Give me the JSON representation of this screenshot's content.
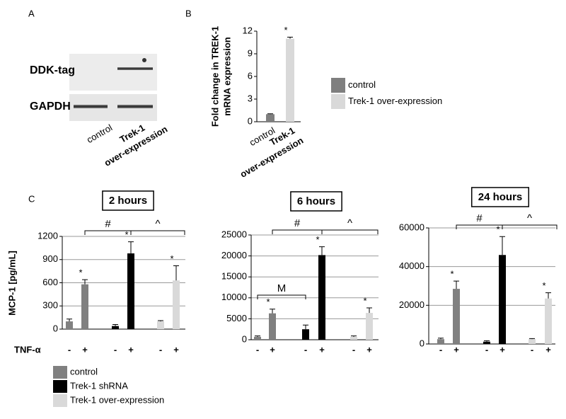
{
  "panel_labels": [
    "A",
    "B",
    "C"
  ],
  "blot": {
    "rows": [
      "DDK-tag",
      "GAPDH"
    ],
    "lanes": [
      "control",
      [
        "Trek-1",
        "over-expression"
      ]
    ]
  },
  "chart_data": [
    {
      "type": "bar",
      "y_label": [
        "Fold change in TREK-1",
        "mRNA expression"
      ],
      "categories": [
        "control",
        [
          "Trek-1",
          "over-expression"
        ]
      ],
      "values": [
        1,
        11
      ],
      "errors": [
        0.05,
        0.2
      ],
      "colors": [
        "#7f7f7f",
        "#d9d9d9"
      ],
      "ylim": [
        0,
        12
      ],
      "yticks": [
        0,
        3,
        6,
        9,
        12
      ],
      "grid": false,
      "annotations": [
        {
          "text": "*",
          "at": 1
        }
      ],
      "legend": [
        {
          "name": "control",
          "color": "#7f7f7f"
        },
        {
          "name": "Trek-1 over-expression",
          "color": "#d9d9d9"
        }
      ]
    },
    {
      "type": "bar",
      "title": "2 hours",
      "y_label": "MCP-1 [pg/mL]",
      "x_label": "TNF-α",
      "categories": [
        "-",
        "+",
        "-",
        "+",
        "-",
        "+"
      ],
      "values": [
        100,
        580,
        40,
        980,
        100,
        630
      ],
      "errors": [
        30,
        60,
        20,
        150,
        10,
        190
      ],
      "colors": [
        "#808080",
        "#808080",
        "#000000",
        "#000000",
        "#d9d9d9",
        "#d9d9d9"
      ],
      "ylim": [
        0,
        1200
      ],
      "yticks": [
        0,
        300,
        600,
        900,
        1200
      ],
      "grid": true,
      "annotations": [
        {
          "text": "*",
          "at": 1
        },
        {
          "text": "*",
          "at": 3
        },
        {
          "text": "*",
          "at": 5
        }
      ],
      "brackets": [
        {
          "text": "#",
          "from": 1,
          "to": 3
        },
        {
          "text": "^",
          "from": 3,
          "to": 5
        }
      ],
      "legend": [
        {
          "name": "control",
          "color": "#808080"
        },
        {
          "name": "Trek-1 shRNA",
          "color": "#000000"
        },
        {
          "name": "Trek-1 over-expression",
          "color": "#d9d9d9"
        }
      ]
    },
    {
      "type": "bar",
      "title": "6 hours",
      "categories": [
        "-",
        "+",
        "-",
        "+",
        "-",
        "+"
      ],
      "values": [
        700,
        6300,
        2500,
        20200,
        700,
        6400
      ],
      "errors": [
        200,
        1000,
        1000,
        2000,
        200,
        1200
      ],
      "colors": [
        "#808080",
        "#808080",
        "#000000",
        "#000000",
        "#d9d9d9",
        "#d9d9d9"
      ],
      "ylim": [
        0,
        25000
      ],
      "yticks": [
        0,
        5000,
        10000,
        15000,
        20000,
        25000
      ],
      "grid": true,
      "annotations": [
        {
          "text": "*",
          "at": 1
        },
        {
          "text": "*",
          "at": 3
        },
        {
          "text": "*",
          "at": 5
        }
      ],
      "brackets": [
        {
          "text": "M",
          "from": 0,
          "to": 2
        },
        {
          "text": "#",
          "from": 1,
          "to": 3
        },
        {
          "text": "^",
          "from": 3,
          "to": 5
        }
      ]
    },
    {
      "type": "bar",
      "title": "24 hours",
      "categories": [
        "-",
        "+",
        "-",
        "+",
        "-",
        "+"
      ],
      "values": [
        2500,
        28500,
        1200,
        46000,
        2500,
        23500
      ],
      "errors": [
        500,
        4000,
        500,
        9500,
        300,
        3000
      ],
      "colors": [
        "#808080",
        "#808080",
        "#000000",
        "#000000",
        "#d9d9d9",
        "#d9d9d9"
      ],
      "ylim": [
        0,
        60000
      ],
      "yticks": [
        0,
        20000,
        40000,
        60000
      ],
      "grid": true,
      "annotations": [
        {
          "text": "*",
          "at": 1
        },
        {
          "text": "*",
          "at": 3
        },
        {
          "text": "*",
          "at": 5
        }
      ],
      "brackets": [
        {
          "text": "#",
          "from": 1,
          "to": 3
        },
        {
          "text": "^",
          "from": 3,
          "to": 5
        }
      ]
    }
  ]
}
